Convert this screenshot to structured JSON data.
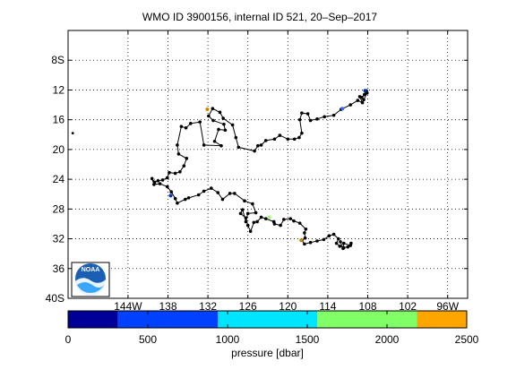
{
  "title": "WMO ID 3900156, internal ID 521, 20–Sep–2017",
  "logo": {
    "text": "NOAA"
  },
  "map": {
    "lon_range": [
      -153,
      -93
    ],
    "lat_range": [
      -40,
      -4
    ],
    "x_ticks": [
      {
        "value": -144,
        "label": "144W"
      },
      {
        "value": -138,
        "label": "138"
      },
      {
        "value": -132,
        "label": "132"
      },
      {
        "value": -126,
        "label": "126"
      },
      {
        "value": -120,
        "label": "120"
      },
      {
        "value": -114,
        "label": "114"
      },
      {
        "value": -108,
        "label": "108"
      },
      {
        "value": -102,
        "label": "102"
      },
      {
        "value": -96,
        "label": "96W"
      }
    ],
    "y_ticks": [
      {
        "value": -8,
        "label": "8S"
      },
      {
        "value": -12,
        "label": "12"
      },
      {
        "value": -16,
        "label": "16"
      },
      {
        "value": -20,
        "label": "20"
      },
      {
        "value": -24,
        "label": "24"
      },
      {
        "value": -28,
        "label": "28"
      },
      {
        "value": -32,
        "label": "32"
      },
      {
        "value": -36,
        "label": "36"
      },
      {
        "value": -40,
        "label": "40S"
      }
    ],
    "grid": true,
    "track_color": "#000000",
    "outlier_point": {
      "lon": -152.3,
      "lat": -17.8
    },
    "track": [
      [
        -108.2,
        -12.1
      ],
      [
        -108.5,
        -12.6
      ],
      [
        -108.9,
        -13.0
      ],
      [
        -108.1,
        -12.4
      ],
      [
        -108.6,
        -13.3
      ],
      [
        -109.2,
        -12.9
      ],
      [
        -108.8,
        -13.7
      ],
      [
        -109.5,
        -13.4
      ],
      [
        -110.6,
        -14.0
      ],
      [
        -112.0,
        -14.6
      ],
      [
        -113.1,
        -15.4
      ],
      [
        -114.5,
        -15.6
      ],
      [
        -115.6,
        -15.9
      ],
      [
        -116.6,
        -16.1
      ],
      [
        -117.0,
        -15.2
      ],
      [
        -117.9,
        -15.1
      ],
      [
        -118.2,
        -16.0
      ],
      [
        -117.9,
        -17.8
      ],
      [
        -118.3,
        -18.4
      ],
      [
        -119.0,
        -18.6
      ],
      [
        -120.0,
        -18.6
      ],
      [
        -121.2,
        -18.1
      ],
      [
        -122.0,
        -18.6
      ],
      [
        -123.3,
        -18.8
      ],
      [
        -124.0,
        -19.4
      ],
      [
        -124.5,
        -19.5
      ],
      [
        -125.0,
        -20.2
      ],
      [
        -127.4,
        -19.7
      ],
      [
        -127.8,
        -18.4
      ],
      [
        -128.3,
        -16.7
      ],
      [
        -129.7,
        -15.8
      ],
      [
        -130.2,
        -15.0
      ],
      [
        -131.3,
        -14.5
      ],
      [
        -131.9,
        -15.5
      ],
      [
        -131.2,
        -16.1
      ],
      [
        -129.6,
        -16.6
      ],
      [
        -129.4,
        -17.4
      ],
      [
        -130.4,
        -17.3
      ],
      [
        -131.0,
        -18.9
      ],
      [
        -130.0,
        -19.5
      ],
      [
        -132.6,
        -19.4
      ],
      [
        -133.2,
        -16.3
      ],
      [
        -134.6,
        -16.5
      ],
      [
        -135.3,
        -17.1
      ],
      [
        -136.0,
        -16.9
      ],
      [
        -136.6,
        -19.4
      ],
      [
        -136.4,
        -20.6
      ],
      [
        -135.2,
        -21.2
      ],
      [
        -135.6,
        -22.2
      ],
      [
        -136.2,
        -23.0
      ],
      [
        -136.9,
        -23.2
      ],
      [
        -137.8,
        -23.1
      ],
      [
        -138.1,
        -23.8
      ],
      [
        -138.8,
        -24.1
      ],
      [
        -139.5,
        -24.2
      ],
      [
        -140.0,
        -24.4
      ],
      [
        -140.4,
        -23.9
      ],
      [
        -140.1,
        -24.7
      ],
      [
        -139.2,
        -24.6
      ],
      [
        -138.1,
        -25.0
      ],
      [
        -137.5,
        -25.7
      ],
      [
        -136.9,
        -26.6
      ],
      [
        -136.6,
        -27.2
      ],
      [
        -135.4,
        -26.7
      ],
      [
        -134.9,
        -26.5
      ],
      [
        -133.4,
        -26.1
      ],
      [
        -132.6,
        -25.6
      ],
      [
        -131.5,
        -25.2
      ],
      [
        -130.5,
        -25.8
      ],
      [
        -129.8,
        -26.7
      ],
      [
        -128.7,
        -25.9
      ],
      [
        -128.0,
        -25.9
      ],
      [
        -126.5,
        -26.9
      ],
      [
        -125.3,
        -27.3
      ],
      [
        -124.8,
        -28.5
      ],
      [
        -126.0,
        -28.6
      ],
      [
        -126.3,
        -29.7
      ],
      [
        -126.8,
        -28.1
      ],
      [
        -127.1,
        -28.6
      ],
      [
        -126.3,
        -29.2
      ],
      [
        -126.0,
        -30.2
      ],
      [
        -125.6,
        -31.0
      ],
      [
        -125.1,
        -29.8
      ],
      [
        -124.6,
        -29.7
      ],
      [
        -124.0,
        -29.1
      ],
      [
        -123.3,
        -29.3
      ],
      [
        -122.1,
        -29.7
      ],
      [
        -122.0,
        -30.0
      ],
      [
        -121.1,
        -30.2
      ],
      [
        -120.6,
        -29.4
      ],
      [
        -119.6,
        -29.3
      ],
      [
        -119.1,
        -29.6
      ],
      [
        -118.2,
        -29.9
      ],
      [
        -117.3,
        -30.7
      ],
      [
        -117.5,
        -31.2
      ],
      [
        -117.4,
        -31.9
      ],
      [
        -117.9,
        -32.2
      ],
      [
        -117.5,
        -32.7
      ],
      [
        -116.6,
        -32.5
      ],
      [
        -115.6,
        -32.3
      ],
      [
        -114.6,
        -32.1
      ],
      [
        -113.8,
        -31.6
      ],
      [
        -113.1,
        -31.4
      ],
      [
        -112.4,
        -32.0
      ],
      [
        -112.7,
        -32.6
      ],
      [
        -112.2,
        -33.0
      ],
      [
        -111.6,
        -33.2
      ],
      [
        -111.0,
        -33.1
      ],
      [
        -110.5,
        -32.6
      ],
      [
        -110.6,
        -32.9
      ],
      [
        -111.6,
        -32.6
      ],
      [
        -111.7,
        -33.3
      ],
      [
        -112.1,
        -32.4
      ]
    ],
    "colored_points": [
      {
        "lon": -108.4,
        "lat": -12.1,
        "color": "#003399"
      },
      {
        "lon": -111.8,
        "lat": -14.5,
        "color": "#3366ff"
      },
      {
        "lon": -137.6,
        "lat": -26.2,
        "color": "#0033cc"
      },
      {
        "lon": -132.1,
        "lat": -14.6,
        "color": "#cc8800"
      },
      {
        "lon": -118.0,
        "lat": -32.2,
        "color": "#cc8800"
      },
      {
        "lon": -122.8,
        "lat": -29.1,
        "color": "#99ff66"
      }
    ]
  },
  "colorbar": {
    "label": "pressure [dbar]",
    "range": [
      0,
      2500
    ],
    "segments": [
      {
        "from": 0,
        "to": 313,
        "color": "#000099"
      },
      {
        "from": 313,
        "to": 938,
        "color": "#0040ff"
      },
      {
        "from": 938,
        "to": 1563,
        "color": "#00e5ff"
      },
      {
        "from": 1563,
        "to": 2188,
        "color": "#80ff66"
      },
      {
        "from": 2188,
        "to": 2500,
        "color": "#ffa500"
      }
    ],
    "ticks": [
      {
        "value": 0,
        "label": "0"
      },
      {
        "value": 500,
        "label": "500"
      },
      {
        "value": 1000,
        "label": "1000"
      },
      {
        "value": 1500,
        "label": "1500"
      },
      {
        "value": 2000,
        "label": "2000"
      },
      {
        "value": 2500,
        "label": "2500"
      }
    ]
  }
}
